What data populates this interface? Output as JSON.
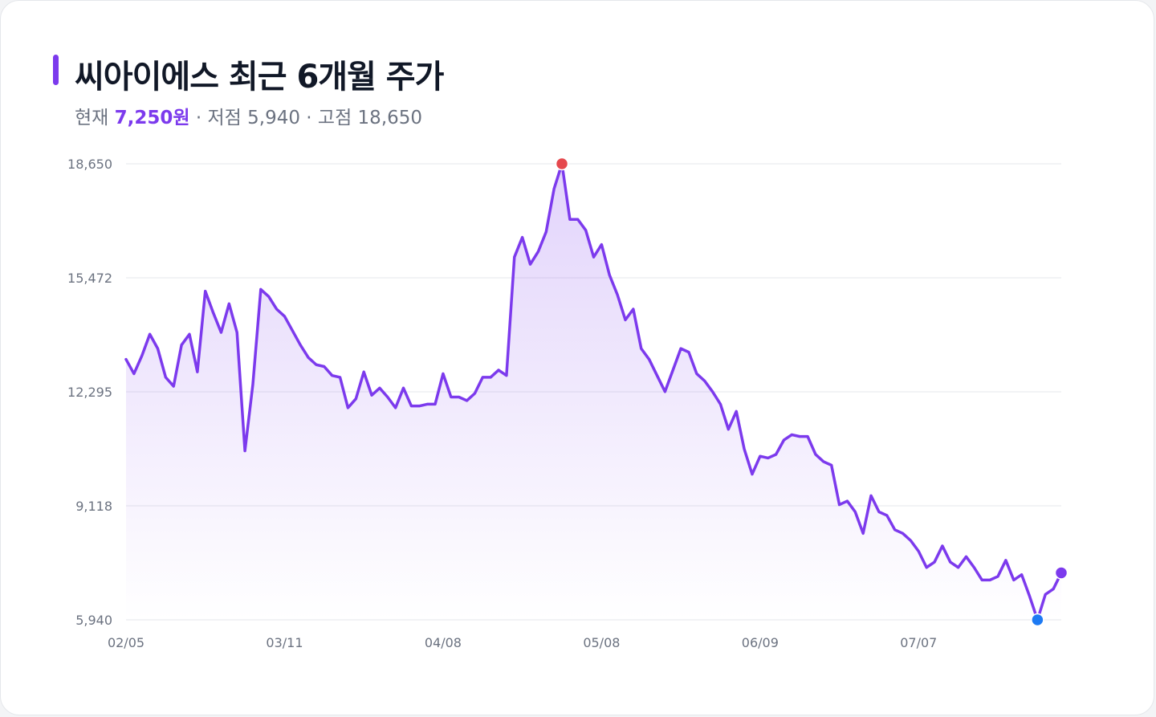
{
  "header": {
    "title": "씨아이에스 최근 6개월 주가",
    "current_label": "현재",
    "current_value": "7,250원",
    "low_text": "· 저점 5,940",
    "high_text": "· 고점 18,650"
  },
  "colors": {
    "accent": "#7c3aed",
    "high_marker": "#e5484d",
    "low_marker": "#1d7af3",
    "grid": "#e5e7eb"
  },
  "chart_data": {
    "type": "area",
    "title": "씨아이에스 최근 6개월 주가",
    "xlabel": "",
    "ylabel": "",
    "ylim": [
      5940,
      18650
    ],
    "y_ticks": [
      5940,
      9118,
      12295,
      15472,
      18650
    ],
    "y_tick_labels": [
      "5,940",
      "9,118",
      "12,295",
      "15,472",
      "18,650"
    ],
    "x_tick_labels": [
      "02/05",
      "03/11",
      "04/08",
      "05/08",
      "06/09",
      "07/07"
    ],
    "x_tick_index": [
      0,
      20,
      40,
      60,
      80,
      100
    ],
    "grid": true,
    "markers": {
      "high_index": 55,
      "low_index": 115,
      "last_index": 118
    },
    "values": [
      13200,
      12800,
      13300,
      13900,
      13500,
      12700,
      12450,
      13600,
      13900,
      12850,
      15100,
      14500,
      13950,
      14750,
      13950,
      10650,
      12500,
      15150,
      14950,
      14600,
      14400,
      14000,
      13600,
      13250,
      13050,
      13000,
      12750,
      12700,
      11850,
      12100,
      12850,
      12200,
      12400,
      12150,
      11850,
      12400,
      11900,
      11900,
      11950,
      11950,
      12800,
      12150,
      12150,
      12050,
      12250,
      12700,
      12700,
      12900,
      12750,
      16050,
      16600,
      15850,
      16200,
      16750,
      17950,
      18650,
      17100,
      17100,
      16800,
      16050,
      16400,
      15550,
      15000,
      14300,
      14600,
      13500,
      13200,
      12750,
      12300,
      12900,
      13500,
      13400,
      12800,
      12600,
      12300,
      11950,
      11250,
      11750,
      10700,
      10000,
      10500,
      10450,
      10550,
      10950,
      11100,
      11050,
      11050,
      10550,
      10350,
      10250,
      9150,
      9250,
      8950,
      8350,
      9400,
      8950,
      8850,
      8450,
      8350,
      8150,
      7850,
      7400,
      7550,
      8000,
      7550,
      7400,
      7700,
      7400,
      7050,
      7050,
      7150,
      7600,
      7050,
      7200,
      6600,
      5940,
      6650,
      6800,
      7250
    ]
  }
}
